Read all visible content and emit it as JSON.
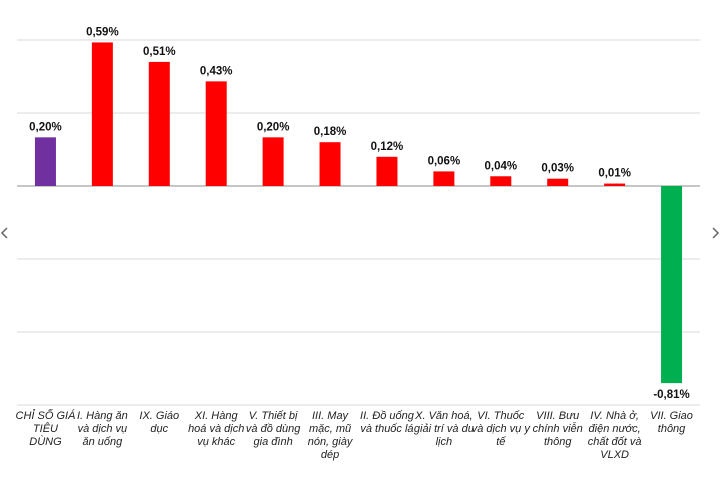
{
  "chart_data": {
    "type": "bar",
    "title": "",
    "xlabel": "",
    "ylabel": "",
    "ylim": [
      -0.9,
      0.6
    ],
    "grid": "horizontal",
    "colors": {
      "total": "#7030a0",
      "positive": "#ff0000",
      "negative": "#00b050"
    },
    "categories": [
      "CHỈ SỐ GIÁ TIÊU DÙNG",
      "I. Hàng ăn và dịch vụ ăn uống",
      "IX. Giáo dục",
      "XI. Hàng hoá và dịch vụ khác",
      "V. Thiết bị và đồ dùng gia đình",
      "III. May mặc, mũ nón, giày dép",
      "II. Đồ uống và thuốc lá",
      "X. Văn hoá, giải trí và du lịch",
      "VI. Thuốc và dịch vụ y tế",
      "VIII. Bưu chính viễn thông",
      "IV. Nhà ở, điện nước, chất đốt và VLXD",
      "VII. Giao thông"
    ],
    "values": [
      0.2,
      0.59,
      0.51,
      0.43,
      0.2,
      0.18,
      0.12,
      0.06,
      0.04,
      0.03,
      0.01,
      -0.81
    ],
    "value_labels": [
      "0,20%",
      "0,59%",
      "0,51%",
      "0,43%",
      "0,20%",
      "0,18%",
      "0,12%",
      "0,06%",
      "0,04%",
      "0,03%",
      "0,01%",
      "-0,81%"
    ]
  }
}
